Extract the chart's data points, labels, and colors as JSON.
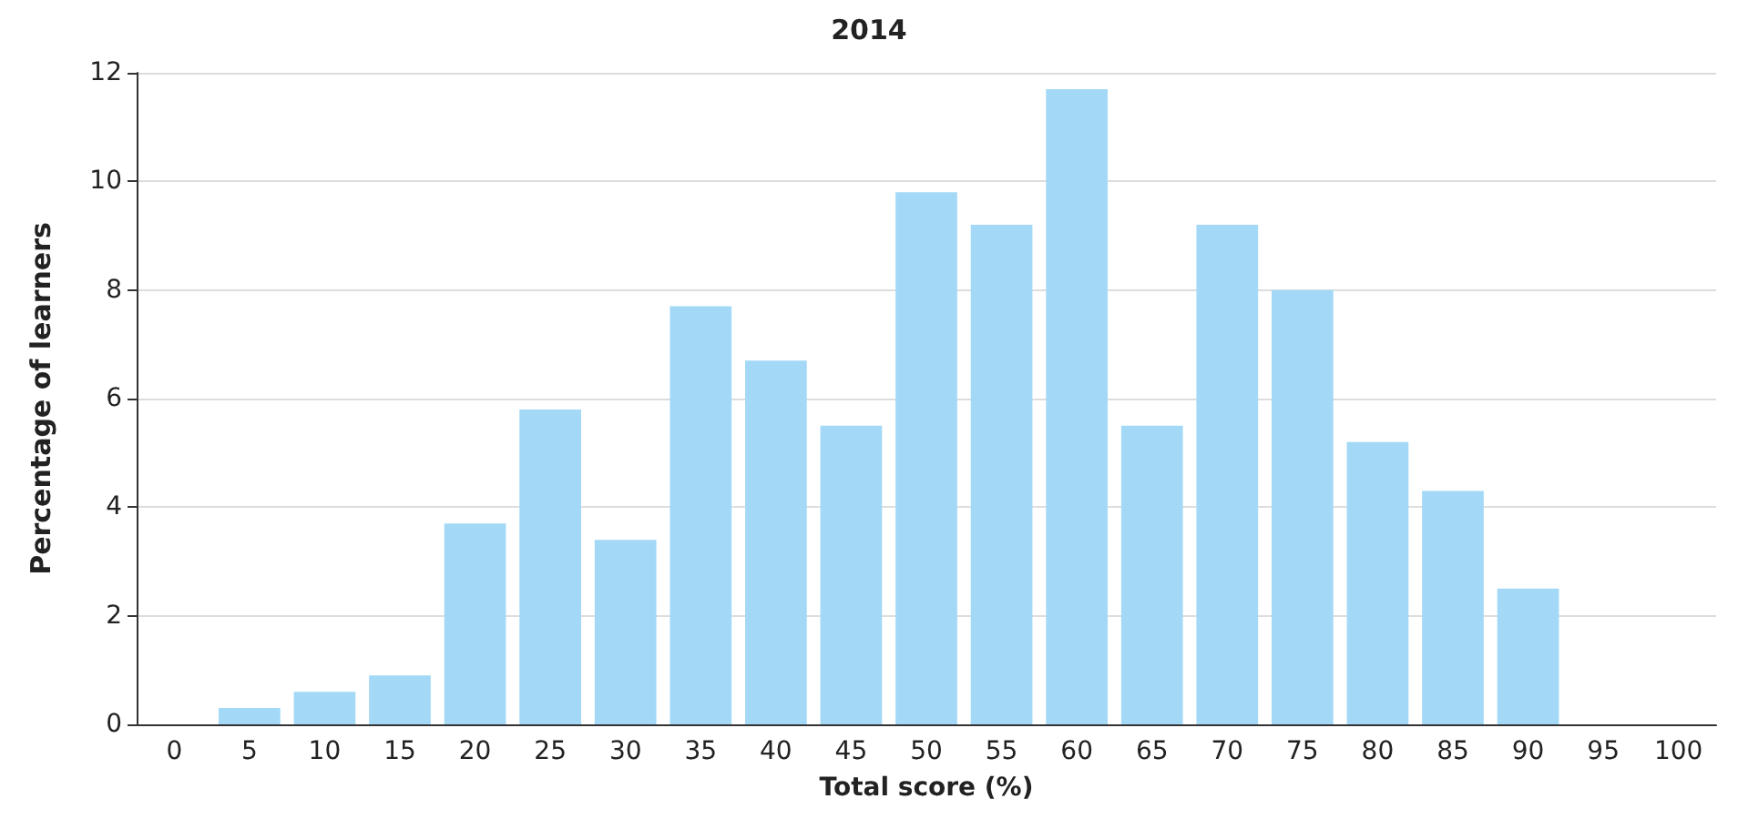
{
  "chart_data": {
    "type": "bar",
    "title": "2014",
    "xlabel": "Total score (%)",
    "ylabel": "Percentage of learners",
    "categories": [
      "0",
      "5",
      "10",
      "15",
      "20",
      "25",
      "30",
      "35",
      "40",
      "45",
      "50",
      "55",
      "60",
      "65",
      "70",
      "75",
      "80",
      "85",
      "90",
      "95",
      "100"
    ],
    "values": [
      0,
      0.3,
      0.6,
      0.9,
      3.7,
      5.8,
      3.4,
      7.7,
      6.7,
      5.5,
      9.8,
      9.2,
      11.7,
      5.5,
      9.2,
      8.0,
      5.2,
      4.3,
      2.5,
      0,
      0
    ],
    "color": "#a3d9f7",
    "ylim": [
      0,
      12
    ],
    "yticks": [
      0,
      2,
      4,
      6,
      8,
      10,
      12
    ],
    "grid": "y"
  }
}
